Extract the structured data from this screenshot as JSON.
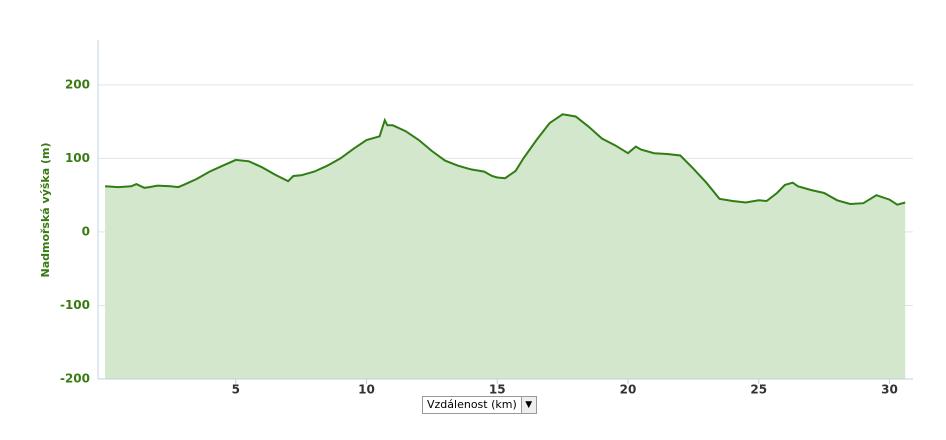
{
  "chart_data": {
    "type": "area",
    "ylabel": "Nadmořská výška (m)",
    "xlabel": "Vzdálenost (km)",
    "color": "#2f7d14",
    "fill": "#d2e7cc",
    "x": [
      0,
      0.5,
      1,
      1.2,
      1.5,
      1.7,
      2,
      2.5,
      2.8,
      3,
      3.5,
      4,
      4.5,
      5,
      5.5,
      6,
      6.5,
      7,
      7.2,
      7.5,
      8,
      8.5,
      9,
      9.5,
      10,
      10.3,
      10.5,
      10.7,
      10.8,
      11,
      11.5,
      12,
      12.5,
      13,
      13.5,
      14,
      14.5,
      14.8,
      15,
      15.3,
      15.7,
      16,
      16.5,
      17,
      17.5,
      18,
      18.5,
      19,
      19.5,
      20,
      20.3,
      20.5,
      21,
      21.5,
      22,
      22.5,
      23,
      23.5,
      24,
      24.5,
      25,
      25.3,
      25.7,
      26,
      26.3,
      26.5,
      27,
      27.5,
      28,
      28.5,
      29,
      29.5,
      30,
      30.3,
      30.6
    ],
    "values": [
      62,
      61,
      62,
      65,
      60,
      61,
      63,
      62,
      61,
      64,
      72,
      82,
      90,
      98,
      96,
      88,
      78,
      69,
      76,
      77,
      82,
      90,
      100,
      113,
      125,
      128,
      130,
      152,
      145,
      145,
      137,
      125,
      110,
      97,
      90,
      85,
      82,
      76,
      74,
      73,
      83,
      100,
      125,
      148,
      160,
      157,
      143,
      127,
      118,
      107,
      116,
      112,
      107,
      106,
      104,
      86,
      67,
      45,
      42,
      40,
      43,
      42,
      53,
      64,
      67,
      62,
      57,
      53,
      43,
      38,
      39,
      50,
      44,
      37,
      40
    ],
    "xlim": [
      -0.27,
      30.9
    ],
    "xticks": [
      5,
      10,
      15,
      20,
      25,
      30
    ],
    "ylim": [
      -200,
      261
    ],
    "yticks": [
      -200,
      -100,
      0,
      100,
      200
    ],
    "grid": true
  }
}
